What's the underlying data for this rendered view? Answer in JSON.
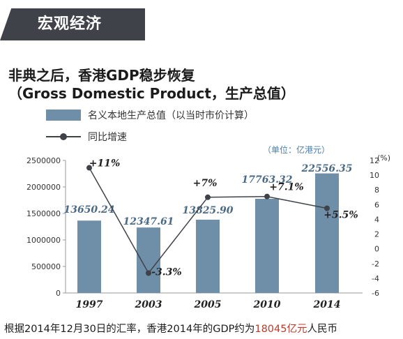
{
  "section_tag": "宏观经济",
  "headline": "非典之后，香港GDP稳步恢复",
  "subheadline": "（Gross Domestic Product，生产总值）",
  "legend": {
    "bar_label": "名义本地生产总值（以当时市价计算）",
    "line_label": "同比增速"
  },
  "unit_note": "（单位：亿港元）",
  "footer": {
    "prefix": "根据2014年12月30日的汇率，香港2014年的GDP约为",
    "amount": "18045亿元",
    "suffix": "人民币"
  },
  "colors": {
    "bar": "#6f8ea8",
    "line": "#3f4349",
    "value_label": "#4a6a86",
    "accent_red": "#c0392b",
    "tag_bg": "#3f4349"
  },
  "chart_data": {
    "type": "bar",
    "categories": [
      "1997",
      "2003",
      "2005",
      "2010",
      "2014"
    ],
    "series": [
      {
        "name": "名义本地生产总值（以当时市价计算）",
        "type": "bar",
        "axis": "left",
        "values": [
          1365024,
          1234761,
          1382590,
          1776332,
          2255635
        ],
        "data_labels": [
          "13650.24",
          "12347.61",
          "13825.90",
          "17763.32",
          "22556.35"
        ]
      },
      {
        "name": "同比增速",
        "type": "line",
        "axis": "right",
        "values": [
          11,
          -3.3,
          7,
          7.1,
          5.5
        ],
        "data_labels": [
          "+11%",
          "-3.3%",
          "+7%",
          "+7.1%",
          "+5.5%"
        ]
      }
    ],
    "left_axis": {
      "range": [
        0,
        2500000
      ],
      "ticks": [
        "0",
        "500000",
        "1000000",
        "1500000",
        "2000000",
        "2500000"
      ]
    },
    "right_axis": {
      "range": [
        -6,
        12
      ],
      "ticks": [
        "-6",
        "-4",
        "-2",
        "0",
        "2",
        "4",
        "6",
        "8",
        "10",
        "12"
      ],
      "unit": "(%)"
    },
    "grid": false,
    "legend_position": "top-left"
  }
}
